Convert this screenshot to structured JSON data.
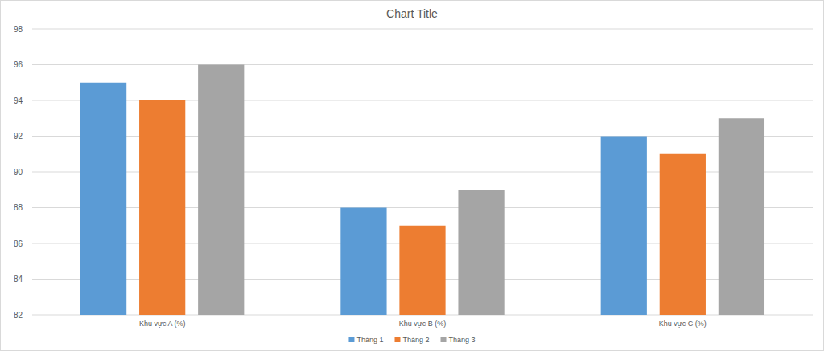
{
  "chart_data": {
    "type": "bar",
    "title": "Chart Title",
    "categories": [
      "Khu vực A (%)",
      "Khu vực B (%)",
      "Khu vực C (%)"
    ],
    "series": [
      {
        "name": "Tháng 1",
        "color": "#5b9bd5",
        "values": [
          95,
          88,
          92
        ]
      },
      {
        "name": "Tháng 2",
        "color": "#ed7d31",
        "values": [
          94,
          87,
          91
        ]
      },
      {
        "name": "Tháng 3",
        "color": "#a5a5a5",
        "values": [
          96,
          89,
          93
        ]
      }
    ],
    "ylim": [
      82,
      98
    ],
    "yticks": [
      82,
      84,
      86,
      88,
      90,
      92,
      94,
      96,
      98
    ],
    "grid": true,
    "legend": "bottom"
  }
}
